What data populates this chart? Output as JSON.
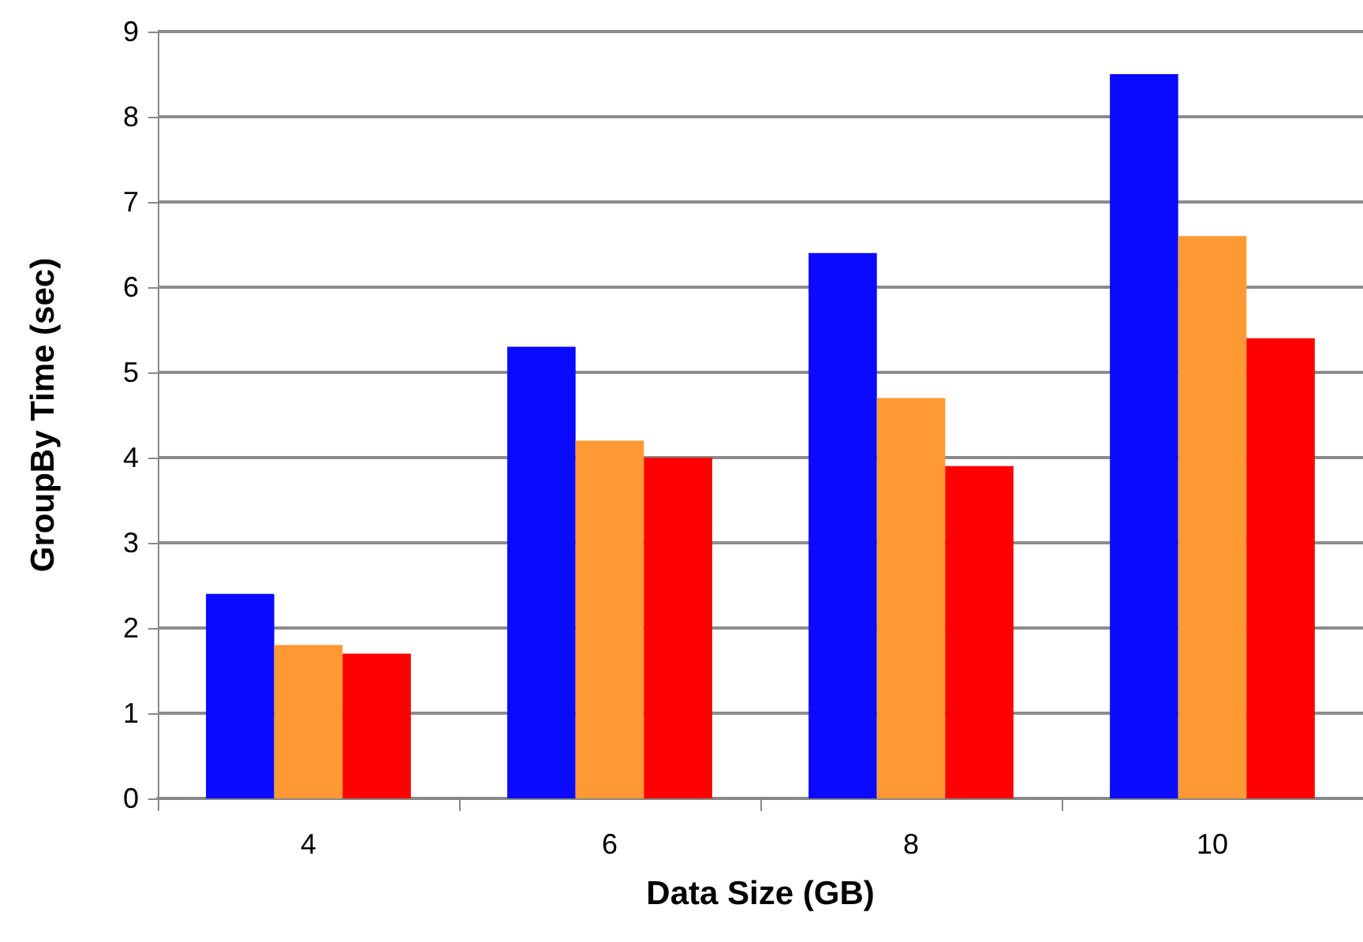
{
  "chart_data": {
    "type": "bar",
    "xlabel": "Data Size (GB)",
    "ylabel": "GroupBy Time (sec)",
    "categories": [
      "4",
      "6",
      "8",
      "10"
    ],
    "series": [
      {
        "color": "#0a0aff",
        "values": [
          2.4,
          5.3,
          6.4,
          8.5
        ]
      },
      {
        "color": "#ff9933",
        "values": [
          1.8,
          4.2,
          4.7,
          6.6
        ]
      },
      {
        "color": "#ff0000",
        "values": [
          1.7,
          4.0,
          3.9,
          5.4
        ]
      }
    ],
    "ylim": [
      0,
      9
    ],
    "yticks": [
      0,
      1,
      2,
      3,
      4,
      5,
      6,
      7,
      8,
      9
    ],
    "grid": "y"
  }
}
